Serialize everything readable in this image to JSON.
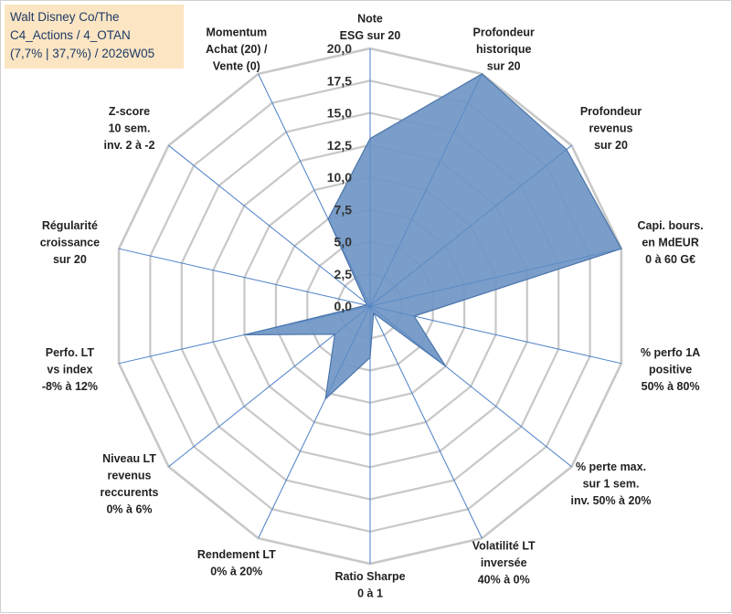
{
  "info_box": {
    "line1": "Walt Disney Co/The",
    "line2": "C4_Actions / 4_OTAN",
    "line3": "(7,7% | 37,7%) / 2026W05"
  },
  "colors": {
    "fill": "#6f96c4",
    "stroke": "#4a74aa",
    "grid": "#c8c8c8",
    "spoke": "#4a7fc8",
    "info_bg": "#fbe5c3",
    "info_text": "#1f3b66"
  },
  "chart_data": {
    "type": "radar",
    "ylim": [
      0,
      20
    ],
    "tick_step": 2.5,
    "tick_labels": [
      "0,0",
      "2,5",
      "5,0",
      "7,5",
      "10,0",
      "12,5",
      "15,0",
      "17,5",
      "20,0"
    ],
    "axes": [
      {
        "label_lines": [
          "Note",
          "ESG sur 20"
        ],
        "value": 13.0
      },
      {
        "label_lines": [
          "Profondeur",
          "historique",
          "sur 20"
        ],
        "value": 20.0
      },
      {
        "label_lines": [
          "Profondeur",
          "revenus",
          "sur 20"
        ],
        "value": 19.5
      },
      {
        "label_lines": [
          "Capi. bours.",
          "en MdEUR",
          "0 à 60 G€"
        ],
        "value": 20.0
      },
      {
        "label_lines": [
          "% perfo 1A",
          "positive",
          "50% à 80%"
        ],
        "value": 3.5
      },
      {
        "label_lines": [
          "% perte max.",
          "sur 1 sem.",
          "inv. 50% à 20%"
        ],
        "value": 7.5
      },
      {
        "label_lines": [
          "Volatilité LT",
          "inversée",
          "40% à 0%"
        ],
        "value": 0.6
      },
      {
        "label_lines": [
          "Ratio Sharpe",
          "0 à 1"
        ],
        "value": 4.0
      },
      {
        "label_lines": [
          "Rendement LT",
          "0% à 20%"
        ],
        "value": 8.0
      },
      {
        "label_lines": [
          "Niveau LT",
          "revenus",
          "reccurents",
          "0% à 6%"
        ],
        "value": 3.5
      },
      {
        "label_lines": [
          "Perfo. LT",
          "vs index",
          "-8% à 12%"
        ],
        "value": 10.0
      },
      {
        "label_lines": [
          "Régularité",
          "croissance",
          "sur 20"
        ],
        "value": 0.3
      },
      {
        "label_lines": [
          "Z-score",
          "10 sem.",
          "inv. 2 à -2"
        ],
        "value": 0.4
      },
      {
        "label_lines": [
          "Momentum",
          "Achat (20) /",
          "Vente (0)"
        ],
        "value": 7.5
      }
    ]
  }
}
